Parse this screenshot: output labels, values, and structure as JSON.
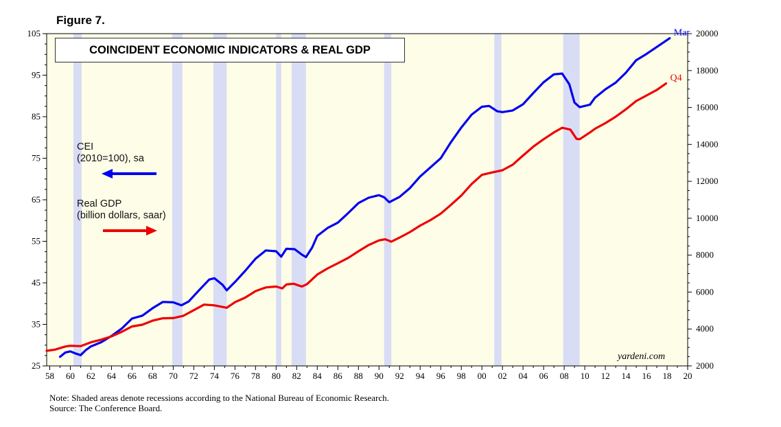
{
  "figure_label": "Figure 7.",
  "brand": "yardeni.com",
  "notes": {
    "note": "Note: Shaded areas denote recessions according to the National Bureau of Economic Research.",
    "source": "Source: The Conference Board."
  },
  "legend": {
    "cei_line1": "CEI",
    "cei_line2": "(2010=100), sa",
    "gdp_line1": "Real GDP",
    "gdp_line2": "(billion dollars, saar)"
  },
  "chart_data": {
    "type": "line",
    "title": "COINCIDENT ECONOMIC INDICATORS & REAL GDP",
    "x_range": [
      1957.7,
      2020
    ],
    "x_ticks": [
      1958,
      1960,
      1962,
      1964,
      1966,
      1968,
      1970,
      1972,
      1974,
      1976,
      1978,
      1980,
      1982,
      1984,
      1986,
      1988,
      1990,
      1992,
      1994,
      1996,
      1998,
      2000,
      2002,
      2004,
      2006,
      2008,
      2010,
      2012,
      2014,
      2016,
      2018,
      2020
    ],
    "x_tick_labels": [
      "58",
      "60",
      "62",
      "64",
      "66",
      "68",
      "70",
      "72",
      "74",
      "76",
      "78",
      "80",
      "82",
      "84",
      "86",
      "88",
      "90",
      "92",
      "94",
      "96",
      "98",
      "00",
      "02",
      "04",
      "06",
      "08",
      "10",
      "12",
      "14",
      "16",
      "18",
      "20"
    ],
    "left_axis": {
      "label": "CEI (2010=100), sa",
      "range": [
        25,
        105
      ],
      "ticks": [
        25,
        35,
        45,
        55,
        65,
        75,
        85,
        95,
        105
      ]
    },
    "right_axis": {
      "label": "Real GDP (billion dollars, saar)",
      "range": [
        2000,
        20000
      ],
      "ticks": [
        2000,
        4000,
        6000,
        8000,
        10000,
        12000,
        14000,
        16000,
        18000,
        20000
      ]
    },
    "recessions": [
      [
        1960.3,
        1961.1
      ],
      [
        1969.9,
        1970.9
      ],
      [
        1973.9,
        1975.2
      ],
      [
        1980.0,
        1980.5
      ],
      [
        1981.5,
        1982.9
      ],
      [
        1990.5,
        1991.2
      ],
      [
        2001.2,
        2001.9
      ],
      [
        2007.9,
        2009.5
      ]
    ],
    "series": [
      {
        "name": "CEI",
        "axis": "left",
        "color": "#0000ee",
        "end_label": "Mar",
        "points": [
          [
            1959,
            27.2
          ],
          [
            1959.5,
            28.2
          ],
          [
            1960,
            28.5
          ],
          [
            1960.5,
            28
          ],
          [
            1961,
            27.6
          ],
          [
            1961.5,
            28.8
          ],
          [
            1962,
            29.7
          ],
          [
            1963,
            30.7
          ],
          [
            1964,
            32.2
          ],
          [
            1965,
            34
          ],
          [
            1966,
            36.4
          ],
          [
            1967,
            37.1
          ],
          [
            1968,
            38.9
          ],
          [
            1969,
            40.4
          ],
          [
            1970,
            40.3
          ],
          [
            1970.8,
            39.6
          ],
          [
            1971.5,
            40.5
          ],
          [
            1972.5,
            43.2
          ],
          [
            1973.5,
            45.8
          ],
          [
            1974,
            46.1
          ],
          [
            1974.8,
            44.5
          ],
          [
            1975.2,
            43.2
          ],
          [
            1976,
            45.2
          ],
          [
            1977,
            47.9
          ],
          [
            1978,
            50.8
          ],
          [
            1979,
            52.8
          ],
          [
            1980,
            52.6
          ],
          [
            1980.5,
            51.3
          ],
          [
            1981,
            53.2
          ],
          [
            1981.8,
            53.1
          ],
          [
            1982.5,
            51.8
          ],
          [
            1982.9,
            51.2
          ],
          [
            1983.5,
            53.5
          ],
          [
            1984,
            56.3
          ],
          [
            1985,
            58.2
          ],
          [
            1986,
            59.5
          ],
          [
            1987,
            61.8
          ],
          [
            1988,
            64.2
          ],
          [
            1989,
            65.5
          ],
          [
            1990,
            66.1
          ],
          [
            1990.5,
            65.6
          ],
          [
            1991,
            64.4
          ],
          [
            1992,
            65.7
          ],
          [
            1993,
            67.8
          ],
          [
            1994,
            70.6
          ],
          [
            1995,
            72.8
          ],
          [
            1996,
            75
          ],
          [
            1997,
            78.9
          ],
          [
            1998,
            82.4
          ],
          [
            1999,
            85.5
          ],
          [
            2000,
            87.4
          ],
          [
            2000.7,
            87.6
          ],
          [
            2001.5,
            86.3
          ],
          [
            2002,
            86.1
          ],
          [
            2003,
            86.5
          ],
          [
            2004,
            88
          ],
          [
            2005,
            90.7
          ],
          [
            2006,
            93.3
          ],
          [
            2007,
            95.2
          ],
          [
            2007.8,
            95.4
          ],
          [
            2008.5,
            92.8
          ],
          [
            2009,
            88.4
          ],
          [
            2009.5,
            87.3
          ],
          [
            2010.5,
            87.9
          ],
          [
            2011,
            89.6
          ],
          [
            2012,
            91.6
          ],
          [
            2013,
            93.2
          ],
          [
            2014,
            95.6
          ],
          [
            2015,
            98.6
          ],
          [
            2016,
            100.1
          ],
          [
            2017,
            101.8
          ],
          [
            2018.25,
            103.9
          ]
        ]
      },
      {
        "name": "Real GDP",
        "axis": "right",
        "color": "#ee0000",
        "end_label": "Q4",
        "points": [
          [
            1957.7,
            2820
          ],
          [
            1958.5,
            2880
          ],
          [
            1959.5,
            3050
          ],
          [
            1960,
            3090
          ],
          [
            1961,
            3070
          ],
          [
            1962,
            3280
          ],
          [
            1963,
            3420
          ],
          [
            1964,
            3600
          ],
          [
            1965,
            3850
          ],
          [
            1966,
            4140
          ],
          [
            1967,
            4230
          ],
          [
            1968,
            4450
          ],
          [
            1969,
            4580
          ],
          [
            1970,
            4590
          ],
          [
            1971,
            4720
          ],
          [
            1972,
            5020
          ],
          [
            1973,
            5320
          ],
          [
            1974,
            5280
          ],
          [
            1975.2,
            5150
          ],
          [
            1976,
            5450
          ],
          [
            1977,
            5700
          ],
          [
            1978,
            6050
          ],
          [
            1979,
            6250
          ],
          [
            1980,
            6300
          ],
          [
            1980.6,
            6200
          ],
          [
            1981,
            6410
          ],
          [
            1981.7,
            6450
          ],
          [
            1982.5,
            6300
          ],
          [
            1983,
            6430
          ],
          [
            1984,
            6950
          ],
          [
            1985,
            7280
          ],
          [
            1986,
            7560
          ],
          [
            1987,
            7850
          ],
          [
            1988,
            8210
          ],
          [
            1989,
            8550
          ],
          [
            1990,
            8800
          ],
          [
            1990.6,
            8860
          ],
          [
            1991.2,
            8730
          ],
          [
            1992,
            8950
          ],
          [
            1993,
            9250
          ],
          [
            1994,
            9600
          ],
          [
            1995,
            9900
          ],
          [
            1996,
            10250
          ],
          [
            1997,
            10730
          ],
          [
            1998,
            11230
          ],
          [
            1999,
            11850
          ],
          [
            2000,
            12350
          ],
          [
            2001,
            12480
          ],
          [
            2002,
            12600
          ],
          [
            2003,
            12900
          ],
          [
            2004,
            13400
          ],
          [
            2005,
            13880
          ],
          [
            2006,
            14280
          ],
          [
            2007,
            14650
          ],
          [
            2007.8,
            14900
          ],
          [
            2008.6,
            14800
          ],
          [
            2009.2,
            14300
          ],
          [
            2009.5,
            14280
          ],
          [
            2010.5,
            14650
          ],
          [
            2011,
            14850
          ],
          [
            2012,
            15150
          ],
          [
            2013,
            15500
          ],
          [
            2014,
            15900
          ],
          [
            2015,
            16350
          ],
          [
            2016,
            16650
          ],
          [
            2017,
            16950
          ],
          [
            2017.9,
            17300
          ]
        ]
      }
    ]
  }
}
